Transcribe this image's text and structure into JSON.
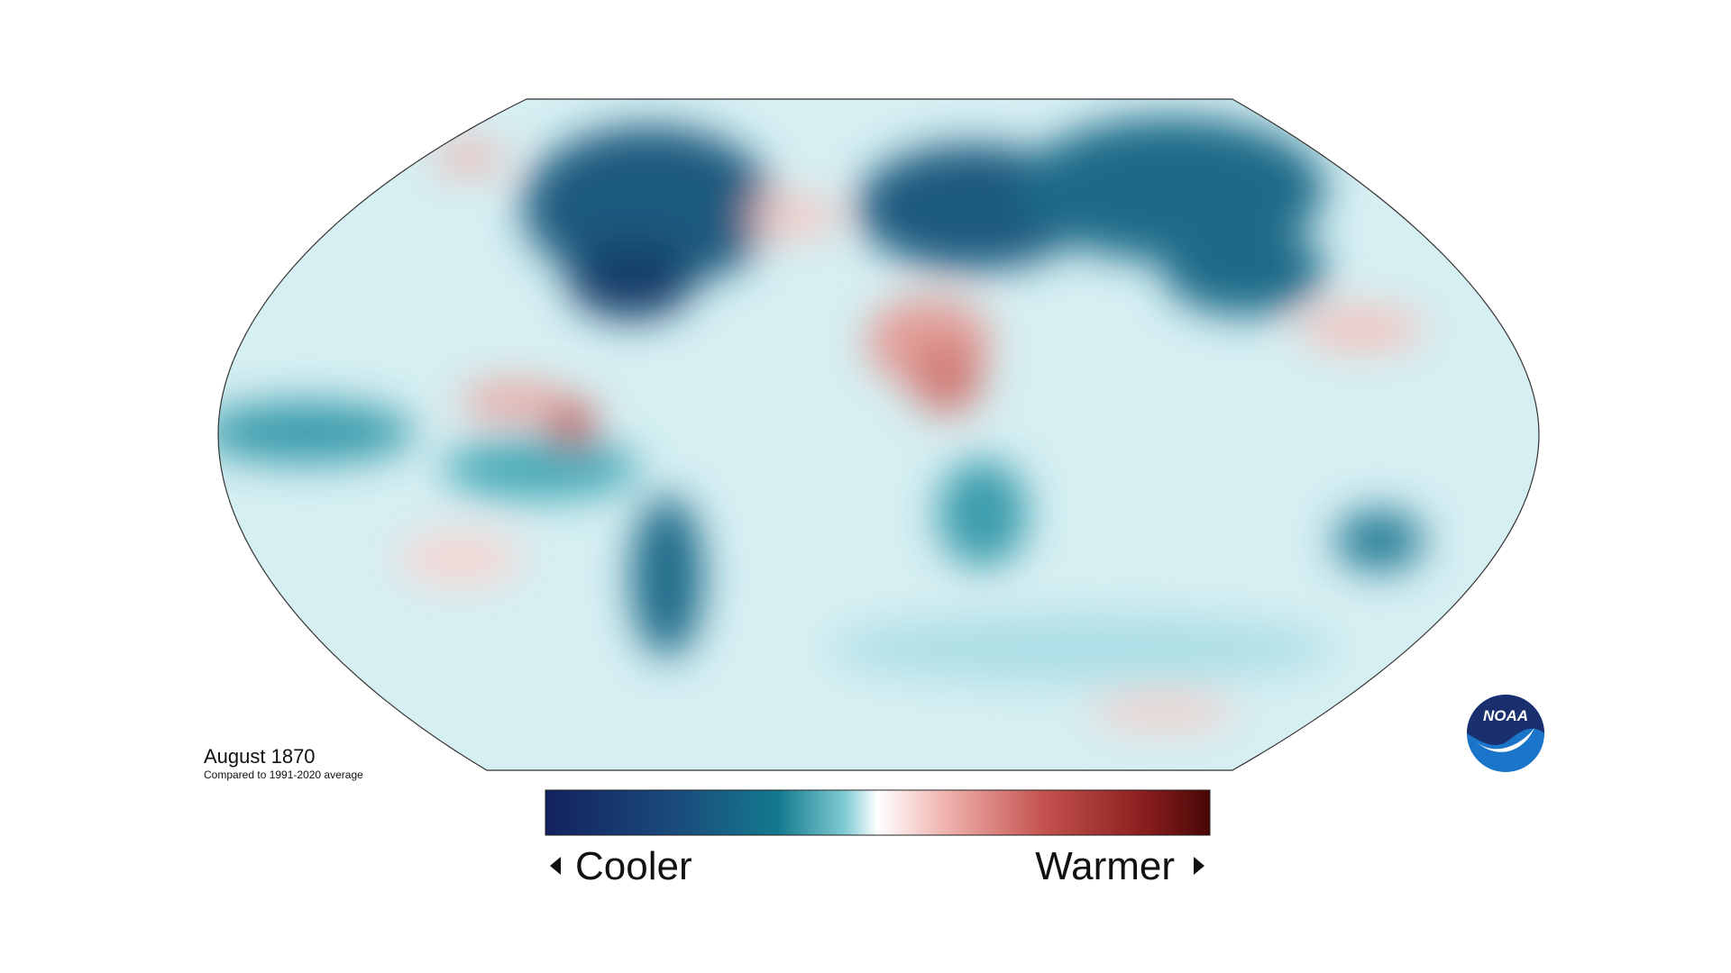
{
  "map": {
    "title": "August 1870",
    "subtitle": "Compared to 1991-2020 average"
  },
  "legend": {
    "low_label": "Cooler",
    "high_label": "Warmer"
  },
  "logo": {
    "text": "NOAA"
  }
}
